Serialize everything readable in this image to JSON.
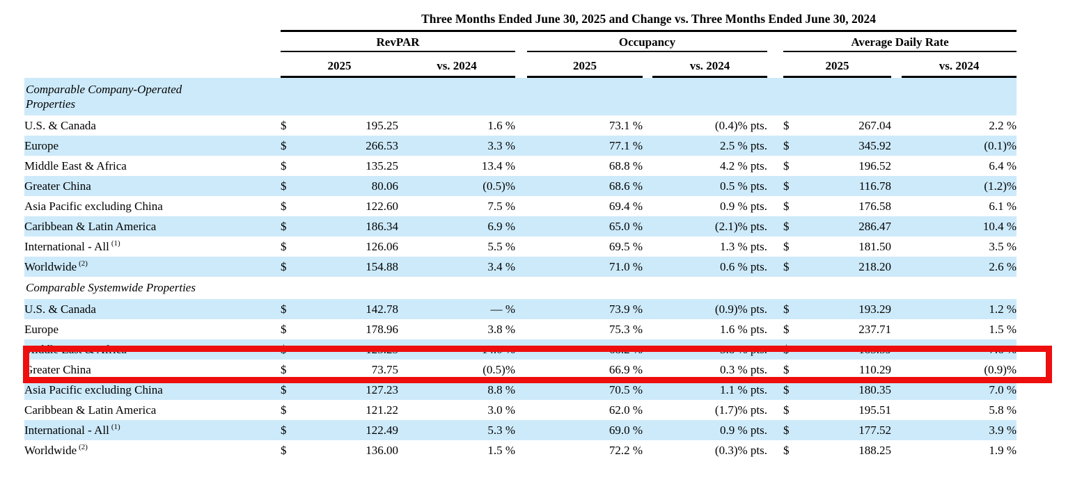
{
  "page": {
    "background": "#ffffff",
    "text_color": "#000000"
  },
  "colors": {
    "shaded_row_blue": "#cdeafa",
    "annotation_red": "#ee0e0e",
    "rule_black": "#000000"
  },
  "table": {
    "title": "Three Months Ended June 30, 2025 and Change vs. Three Months Ended June 30, 2024",
    "currency_symbol": "$",
    "column_groups": [
      {
        "label": "RevPAR",
        "columns": [
          "2025",
          "vs. 2024"
        ]
      },
      {
        "label": "Occupancy",
        "columns": [
          "2025",
          "vs. 2024"
        ]
      },
      {
        "label": "Average Daily Rate",
        "columns": [
          "2025",
          "vs. 2024"
        ]
      }
    ],
    "sections": [
      {
        "header": "Comparable Company-Operated Properties",
        "header_lines": [
          "Comparable Company-Operated",
          "Properties"
        ],
        "header_shaded": true,
        "rows": [
          {
            "label": "U.S. & Canada",
            "sup": "",
            "shaded": false,
            "highlighted": false,
            "revpar_2025": "195.25",
            "revpar_vs_2024": "1.6 %",
            "occupancy_2025": "73.1 %",
            "occupancy_vs_2024": "(0.4)% pts.",
            "adr_2025": "267.04",
            "adr_vs_2024": "2.2 %"
          },
          {
            "label": "Europe",
            "sup": "",
            "shaded": true,
            "highlighted": false,
            "revpar_2025": "266.53",
            "revpar_vs_2024": "3.3 %",
            "occupancy_2025": "77.1 %",
            "occupancy_vs_2024": "2.5 % pts.",
            "adr_2025": "345.92",
            "adr_vs_2024": "(0.1)%"
          },
          {
            "label": "Middle East & Africa",
            "sup": "",
            "shaded": false,
            "highlighted": false,
            "revpar_2025": "135.25",
            "revpar_vs_2024": "13.4 %",
            "occupancy_2025": "68.8 %",
            "occupancy_vs_2024": "4.2 % pts.",
            "adr_2025": "196.52",
            "adr_vs_2024": "6.4 %"
          },
          {
            "label": "Greater China",
            "sup": "",
            "shaded": true,
            "highlighted": false,
            "revpar_2025": "80.06",
            "revpar_vs_2024": "(0.5)%",
            "occupancy_2025": "68.6 %",
            "occupancy_vs_2024": "0.5 % pts.",
            "adr_2025": "116.78",
            "adr_vs_2024": "(1.2)%"
          },
          {
            "label": "Asia Pacific excluding China",
            "sup": "",
            "shaded": false,
            "highlighted": false,
            "revpar_2025": "122.60",
            "revpar_vs_2024": "7.5 %",
            "occupancy_2025": "69.4 %",
            "occupancy_vs_2024": "0.9 % pts.",
            "adr_2025": "176.58",
            "adr_vs_2024": "6.1 %"
          },
          {
            "label": "Caribbean & Latin America",
            "sup": "",
            "shaded": true,
            "highlighted": false,
            "revpar_2025": "186.34",
            "revpar_vs_2024": "6.9 %",
            "occupancy_2025": "65.0 %",
            "occupancy_vs_2024": "(2.1)% pts.",
            "adr_2025": "286.47",
            "adr_vs_2024": "10.4 %"
          },
          {
            "label": "International - All",
            "sup": "(1)",
            "shaded": false,
            "highlighted": false,
            "revpar_2025": "126.06",
            "revpar_vs_2024": "5.5 %",
            "occupancy_2025": "69.5 %",
            "occupancy_vs_2024": "1.3 % pts.",
            "adr_2025": "181.50",
            "adr_vs_2024": "3.5 %"
          },
          {
            "label": "Worldwide",
            "sup": "(2)",
            "shaded": true,
            "highlighted": false,
            "revpar_2025": "154.88",
            "revpar_vs_2024": "3.4 %",
            "occupancy_2025": "71.0 %",
            "occupancy_vs_2024": "0.6 % pts.",
            "adr_2025": "218.20",
            "adr_vs_2024": "2.6 %"
          }
        ]
      },
      {
        "header": "Comparable Systemwide Properties",
        "header_lines": [
          "Comparable Systemwide Properties"
        ],
        "header_shaded": false,
        "rows": [
          {
            "label": "U.S. & Canada",
            "sup": "",
            "shaded": true,
            "highlighted": false,
            "revpar_2025": "142.78",
            "revpar_vs_2024": "— %",
            "occupancy_2025": "73.9 %",
            "occupancy_vs_2024": "(0.9)% pts.",
            "adr_2025": "193.29",
            "adr_vs_2024": "1.2 %"
          },
          {
            "label": "Europe",
            "sup": "",
            "shaded": false,
            "highlighted": false,
            "revpar_2025": "178.96",
            "revpar_vs_2024": "3.8 %",
            "occupancy_2025": "75.3 %",
            "occupancy_vs_2024": "1.6 % pts.",
            "adr_2025": "237.71",
            "adr_vs_2024": "1.5 %"
          },
          {
            "label": "Middle East & Africa",
            "sup": "",
            "shaded": true,
            "highlighted": false,
            "revpar_2025": "125.23",
            "revpar_vs_2024": "14.0 %",
            "occupancy_2025": "68.2 %",
            "occupancy_vs_2024": "3.8 % pts.",
            "adr_2025": "183.59",
            "adr_vs_2024": "7.6 %"
          },
          {
            "label": "Greater China",
            "sup": "",
            "shaded": false,
            "highlighted": true,
            "revpar_2025": "73.75",
            "revpar_vs_2024": "(0.5)%",
            "occupancy_2025": "66.9 %",
            "occupancy_vs_2024": "0.3 % pts.",
            "adr_2025": "110.29",
            "adr_vs_2024": "(0.9)%"
          },
          {
            "label": "Asia Pacific excluding China",
            "sup": "",
            "shaded": true,
            "highlighted": false,
            "revpar_2025": "127.23",
            "revpar_vs_2024": "8.8 %",
            "occupancy_2025": "70.5 %",
            "occupancy_vs_2024": "1.1 % pts.",
            "adr_2025": "180.35",
            "adr_vs_2024": "7.0 %"
          },
          {
            "label": "Caribbean & Latin America",
            "sup": "",
            "shaded": false,
            "highlighted": false,
            "revpar_2025": "121.22",
            "revpar_vs_2024": "3.0 %",
            "occupancy_2025": "62.0 %",
            "occupancy_vs_2024": "(1.7)% pts.",
            "adr_2025": "195.51",
            "adr_vs_2024": "5.8 %"
          },
          {
            "label": "International - All",
            "sup": "(1)",
            "shaded": true,
            "highlighted": false,
            "revpar_2025": "122.49",
            "revpar_vs_2024": "5.3 %",
            "occupancy_2025": "69.0 %",
            "occupancy_vs_2024": "0.9 % pts.",
            "adr_2025": "177.52",
            "adr_vs_2024": "3.9 %"
          },
          {
            "label": "Worldwide",
            "sup": "(2)",
            "shaded": false,
            "highlighted": false,
            "revpar_2025": "136.00",
            "revpar_vs_2024": "1.5 %",
            "occupancy_2025": "72.2 %",
            "occupancy_vs_2024": "(0.3)% pts.",
            "adr_2025": "188.25",
            "adr_vs_2024": "1.9 %"
          }
        ]
      }
    ],
    "annotation": {
      "type": "red-highlight-box",
      "color": "#ee0e0e",
      "target_section": "Comparable Systemwide Properties",
      "target_row": "Greater China"
    }
  }
}
